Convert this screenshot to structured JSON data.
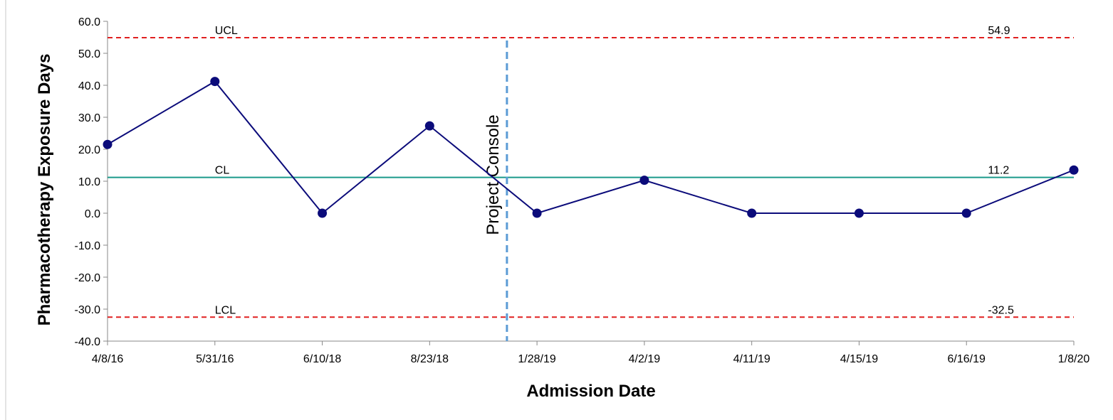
{
  "chart_data": {
    "type": "line",
    "title": "",
    "xlabel": "Admission Date",
    "ylabel": "Pharmacotherapy Exposure Days",
    "categories": [
      "4/8/16",
      "5/31/16",
      "6/10/18",
      "8/23/18",
      "1/28/19",
      "4/2/19",
      "4/11/19",
      "4/15/19",
      "6/16/19",
      "1/8/20"
    ],
    "series": [
      {
        "values": [
          21.5,
          41.2,
          0.0,
          27.3,
          0.0,
          10.3,
          0.0,
          0.0,
          0.0,
          13.5
        ]
      }
    ],
    "ylim": [
      -40,
      60
    ],
    "yticks": [
      "-40.0",
      "-30.0",
      "-20.0",
      "-10.0",
      "0.0",
      "10.0",
      "20.0",
      "30.0",
      "40.0",
      "50.0",
      "60.0"
    ],
    "grid": false,
    "legend": "none",
    "control_limits": {
      "ucl": {
        "label": "UCL",
        "value": 54.9,
        "value_label": "54.9"
      },
      "cl": {
        "label": "CL",
        "value": 11.2,
        "value_label": "11.2"
      },
      "lcl": {
        "label": "LCL",
        "value": -32.5,
        "value_label": "-32.5"
      }
    },
    "annotation": {
      "text": "Project Console",
      "between_categories": [
        "8/23/18",
        "1/28/19"
      ]
    },
    "colors": {
      "series": "#0b0b7a",
      "cl": "#1a9a8a",
      "limits": "#e02020",
      "annotation": "#5b9bd5"
    }
  }
}
